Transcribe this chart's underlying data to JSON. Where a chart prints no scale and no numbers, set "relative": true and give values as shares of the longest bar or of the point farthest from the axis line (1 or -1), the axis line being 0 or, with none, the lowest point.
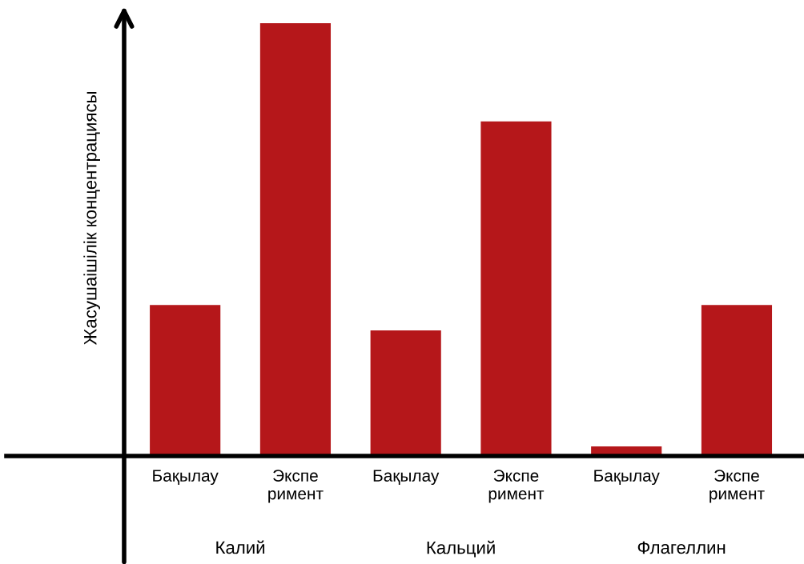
{
  "chart_data": {
    "type": "bar",
    "relative": true,
    "ylabel": "Жасушаішілік концентрациясы",
    "categories": [
      "Бақылау",
      "Экспе\nримент",
      "Бақылау",
      "Экспе\nримент",
      "Бақылау",
      "Экспе\nримент"
    ],
    "values": [
      0.349,
      1,
      0.29,
      0.773,
      0.022,
      0.349
    ],
    "color": "#b5171a",
    "annotations": [
      "Калий",
      "Кальций",
      "Флагеллин"
    ],
    "grid": false,
    "legend": false
  }
}
